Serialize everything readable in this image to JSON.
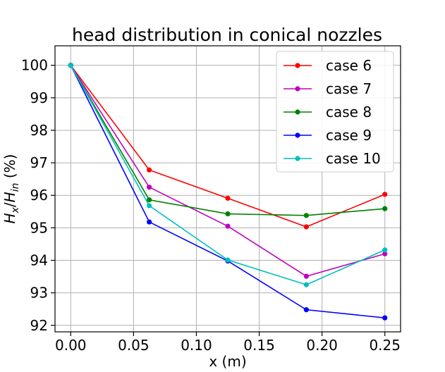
{
  "chart_data": {
    "type": "line",
    "title": "head distribution in conical nozzles",
    "xlabel": "x (m)",
    "ylabel": {
      "base": "H",
      "sub1": "x",
      "slash": "/",
      "base2": "H",
      "sub2": "in",
      "unit": " (%)"
    },
    "xlim": [
      -0.0125,
      0.2625
    ],
    "ylim": [
      91.8,
      100.6
    ],
    "xticks": [
      0.0,
      0.05,
      0.1,
      0.15,
      0.2,
      0.25
    ],
    "xtick_labels": [
      "0.00",
      "0.05",
      "0.10",
      "0.15",
      "0.20",
      "0.25"
    ],
    "yticks": [
      92,
      93,
      94,
      95,
      96,
      97,
      98,
      99,
      100
    ],
    "ytick_labels": [
      "92",
      "93",
      "94",
      "95",
      "96",
      "97",
      "98",
      "99",
      "100"
    ],
    "grid": true,
    "legend_position": "top-right",
    "x": [
      0.0,
      0.0625,
      0.125,
      0.1875,
      0.25
    ],
    "series": [
      {
        "name": "case 6",
        "color": "#ff0000",
        "values": [
          100.0,
          96.78,
          95.91,
          95.03,
          96.03
        ]
      },
      {
        "name": "case 7",
        "color": "#bf00bf",
        "values": [
          100.0,
          96.25,
          95.05,
          93.51,
          94.2
        ]
      },
      {
        "name": "case 8",
        "color": "#008000",
        "values": [
          100.0,
          95.86,
          95.43,
          95.38,
          95.59
        ]
      },
      {
        "name": "case 9",
        "color": "#0000ff",
        "values": [
          100.0,
          95.18,
          93.98,
          92.48,
          92.23
        ]
      },
      {
        "name": "case 10",
        "color": "#00bfbf",
        "values": [
          100.0,
          95.68,
          94.01,
          93.25,
          94.32
        ]
      }
    ]
  }
}
